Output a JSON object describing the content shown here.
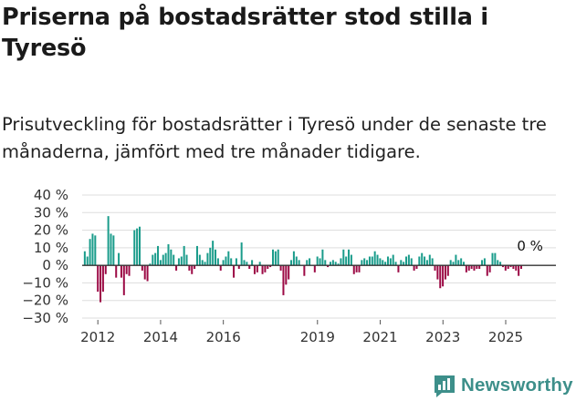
{
  "title": "Priserna på bostadsrätter stod stilla i Tyresö",
  "subtitle": "Prisutveckling för bostadsrätter i Tyresö under de senaste tre månaderna, jämfört med tre månader tidigare.",
  "brand": {
    "name": "Newsworthy",
    "icon": "bar-chart-logo-icon",
    "color": "#3d8f8a"
  },
  "chart_data": {
    "type": "bar",
    "title": "",
    "xlabel": "",
    "ylabel": "",
    "ylim": [
      -30,
      40
    ],
    "yticks": [
      40,
      30,
      20,
      10,
      0,
      -10,
      -20,
      -30
    ],
    "ytick_labels": [
      "40 %",
      "30 %",
      "20 %",
      "10 %",
      "0 %",
      "−10 %",
      "−20 %",
      "−30 %"
    ],
    "x_range": [
      2011.5,
      2026.6
    ],
    "xticks": [
      2012,
      2014,
      2016,
      2019,
      2021,
      2023,
      2025
    ],
    "xtick_labels": [
      "2012",
      "2014",
      "2016",
      "2019",
      "2021",
      "2023",
      "2025"
    ],
    "colors": {
      "positive": "#1a9c8b",
      "negative": "#9c0a45",
      "grid": "#dddddd",
      "zero": "#333333"
    },
    "annotation": {
      "text": "0 %",
      "x": 2025.9,
      "y": 0
    },
    "series": [
      {
        "name": "Prisutveckling",
        "x_start": 2011.5,
        "step": 0.0833,
        "values": [
          0,
          8,
          5,
          15,
          18,
          17,
          -15,
          -21,
          -15,
          -5,
          28,
          18,
          17,
          -7,
          7,
          -7,
          -17,
          -5,
          -6,
          0,
          20,
          21,
          22,
          -3,
          -8,
          -9,
          1,
          6,
          7,
          11,
          3,
          6,
          7,
          12,
          9,
          6,
          -3,
          4,
          5,
          11,
          6,
          -3,
          -5,
          -2,
          11,
          6,
          3,
          2,
          7,
          10,
          14,
          9,
          4,
          -3,
          3,
          5,
          8,
          4,
          -7,
          4,
          -2,
          13,
          3,
          2,
          -2,
          3,
          -5,
          -4,
          2,
          -5,
          -4,
          -2,
          -1,
          9,
          8,
          9,
          -3,
          -17,
          -11,
          -8,
          3,
          8,
          5,
          3,
          0,
          -6,
          3,
          4,
          0,
          -4,
          5,
          4,
          9,
          3,
          -1,
          2,
          3,
          2,
          1,
          4,
          9,
          5,
          9,
          6,
          -5,
          -4,
          -4,
          3,
          4,
          3,
          5,
          5,
          8,
          6,
          4,
          3,
          2,
          5,
          4,
          6,
          2,
          -4,
          3,
          2,
          5,
          6,
          4,
          -3,
          -2,
          5,
          7,
          5,
          3,
          6,
          4,
          -3,
          -8,
          -13,
          -12,
          -8,
          -6,
          3,
          2,
          6,
          3,
          4,
          2,
          -4,
          -3,
          -2,
          -3,
          -2,
          -2,
          3,
          4,
          -6,
          -4,
          7,
          7,
          3,
          2,
          -1,
          -3,
          -2,
          -1,
          -2,
          -3,
          -6,
          -2,
          0,
          0
        ]
      }
    ]
  }
}
